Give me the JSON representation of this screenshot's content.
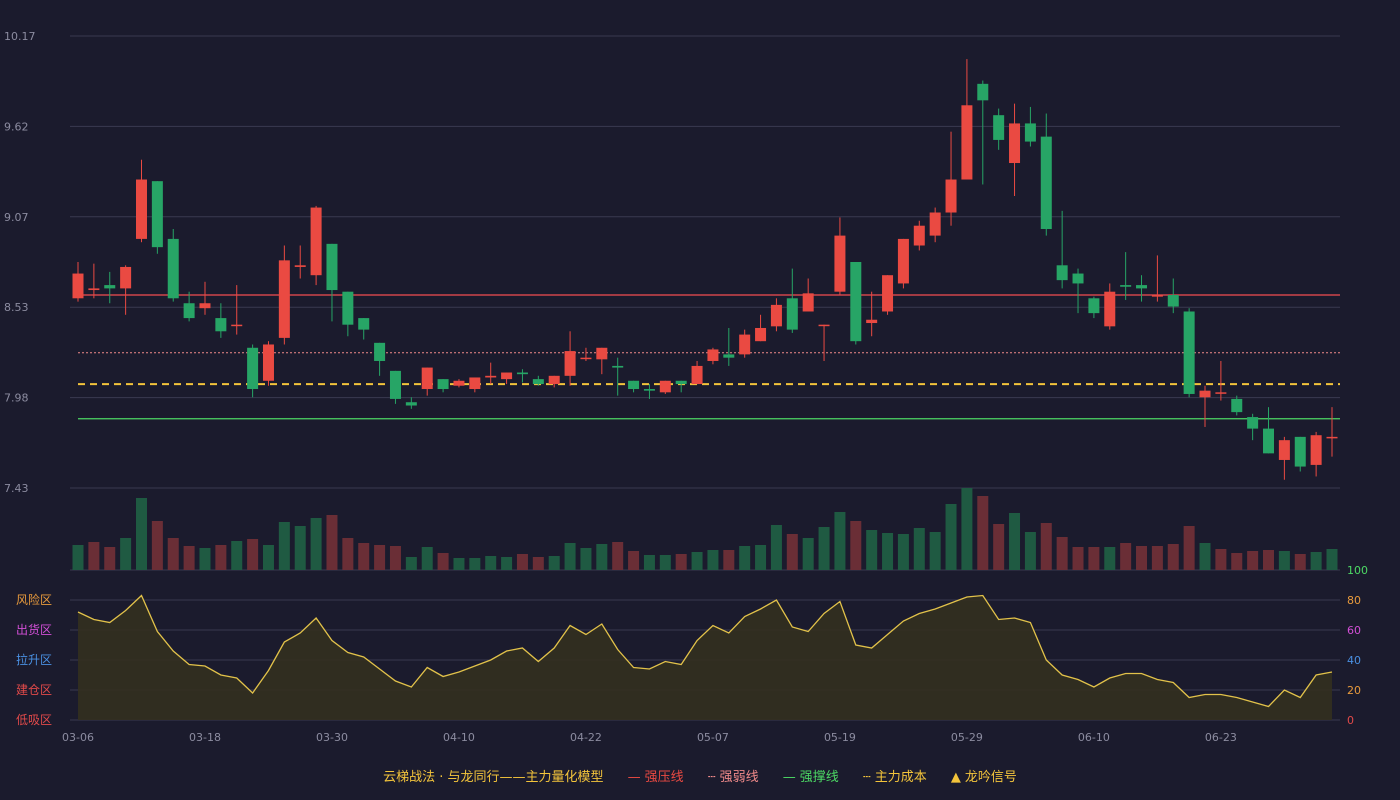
{
  "colors": {
    "background": "#1b1b2d",
    "up": "#ea4a42",
    "down": "#27a566",
    "grid": "#3a3a50",
    "resistance": "#d0454b",
    "weak": "#f08a8a",
    "support": "#4cd964",
    "cost": "#f3c43b",
    "oscillator": "#e2c24a",
    "axis_text": "#8c8ca0"
  },
  "legend": {
    "title": "云梯战法 · 与龙同行——主力量化模型",
    "items": [
      {
        "symbol": "—",
        "label": "强压线",
        "color": "#ea4a42"
      },
      {
        "symbol": "┄",
        "label": "强弱线",
        "color": "#f08a8a"
      },
      {
        "symbol": "—",
        "label": "强撑线",
        "color": "#4cd964"
      },
      {
        "symbol": "┄",
        "label": "主力成本",
        "color": "#f3c43b"
      },
      {
        "symbol": "▲",
        "label": "龙吟信号",
        "color": "#f3c43b"
      }
    ]
  },
  "chart_data": {
    "type": "candlestick",
    "price_ylim": [
      7.43,
      10.17
    ],
    "price_ticks": [
      "10.17",
      "9.62",
      "9.07",
      "8.53",
      "7.98",
      "7.43"
    ],
    "date_ticks": [
      {
        "index": 0,
        "label": "03-06"
      },
      {
        "index": 8,
        "label": "03-18"
      },
      {
        "index": 16,
        "label": "03-30"
      },
      {
        "index": 24,
        "label": "04-10"
      },
      {
        "index": 32,
        "label": "04-22"
      },
      {
        "index": 40,
        "label": "05-07"
      },
      {
        "index": 48,
        "label": "05-19"
      },
      {
        "index": 56,
        "label": "05-29"
      },
      {
        "index": 64,
        "label": "06-10"
      },
      {
        "index": 72,
        "label": "06-23"
      }
    ],
    "levels": {
      "strong_resistance": 8.6,
      "weak_line": 8.25,
      "main_cost": 8.06,
      "strong_support": 7.85
    },
    "candles": [
      [
        8.58,
        8.73,
        8.56,
        8.8
      ],
      [
        8.63,
        8.64,
        8.58,
        8.79
      ],
      [
        8.66,
        8.64,
        8.55,
        8.74
      ],
      [
        8.64,
        8.77,
        8.48,
        8.78
      ],
      [
        8.94,
        9.3,
        8.92,
        9.42
      ],
      [
        9.29,
        8.89,
        8.85,
        9.29
      ],
      [
        8.94,
        8.58,
        8.56,
        9.0
      ],
      [
        8.55,
        8.46,
        8.44,
        8.62
      ],
      [
        8.52,
        8.55,
        8.48,
        8.68
      ],
      [
        8.46,
        8.38,
        8.34,
        8.55
      ],
      [
        8.42,
        8.42,
        8.36,
        8.66
      ],
      [
        8.28,
        8.03,
        7.98,
        8.3
      ],
      [
        8.08,
        8.3,
        8.05,
        8.32
      ],
      [
        8.34,
        8.81,
        8.3,
        8.9
      ],
      [
        8.77,
        8.78,
        8.7,
        8.9
      ],
      [
        8.72,
        9.13,
        8.66,
        9.14
      ],
      [
        8.91,
        8.63,
        8.44,
        8.91
      ],
      [
        8.62,
        8.42,
        8.35,
        8.62
      ],
      [
        8.46,
        8.39,
        8.33,
        8.46
      ],
      [
        8.31,
        8.2,
        8.11,
        8.31
      ],
      [
        8.14,
        7.97,
        7.94,
        8.14
      ],
      [
        7.95,
        7.93,
        7.91,
        7.98
      ],
      [
        8.03,
        8.16,
        7.99,
        8.16
      ],
      [
        8.09,
        8.03,
        8.01,
        8.09
      ],
      [
        8.05,
        8.08,
        8.04,
        8.09
      ],
      [
        8.03,
        8.1,
        8.01,
        8.1
      ],
      [
        8.1,
        8.11,
        8.06,
        8.19
      ],
      [
        8.09,
        8.13,
        8.06,
        8.13
      ],
      [
        8.13,
        8.12,
        8.07,
        8.15
      ],
      [
        8.09,
        8.06,
        8.05,
        8.11
      ],
      [
        8.06,
        8.11,
        8.04,
        8.11
      ],
      [
        8.11,
        8.26,
        8.05,
        8.38
      ],
      [
        8.22,
        8.22,
        8.2,
        8.28
      ],
      [
        8.21,
        8.28,
        8.12,
        8.28
      ],
      [
        8.17,
        8.16,
        7.99,
        8.22
      ],
      [
        8.08,
        8.03,
        8.01,
        8.08
      ],
      [
        8.03,
        8.02,
        7.97,
        8.06
      ],
      [
        8.01,
        8.08,
        8.0,
        8.08
      ],
      [
        8.08,
        8.06,
        8.01,
        8.08
      ],
      [
        8.06,
        8.17,
        8.06,
        8.2
      ],
      [
        8.2,
        8.27,
        8.18,
        8.28
      ],
      [
        8.24,
        8.22,
        8.17,
        8.4
      ],
      [
        8.24,
        8.36,
        8.22,
        8.39
      ],
      [
        8.32,
        8.4,
        8.32,
        8.48
      ],
      [
        8.41,
        8.54,
        8.38,
        8.58
      ],
      [
        8.58,
        8.39,
        8.37,
        8.76
      ],
      [
        8.5,
        8.61,
        8.5,
        8.7
      ],
      [
        8.42,
        8.42,
        8.2,
        8.42
      ],
      [
        8.62,
        8.96,
        8.6,
        9.07
      ],
      [
        8.8,
        8.32,
        8.3,
        8.8
      ],
      [
        8.43,
        8.45,
        8.35,
        8.62
      ],
      [
        8.5,
        8.72,
        8.48,
        8.72
      ],
      [
        8.67,
        8.94,
        8.64,
        8.94
      ],
      [
        8.9,
        9.02,
        8.87,
        9.05
      ],
      [
        8.96,
        9.1,
        8.92,
        9.13
      ],
      [
        9.1,
        9.3,
        9.02,
        9.59
      ],
      [
        9.3,
        9.75,
        9.3,
        10.03
      ],
      [
        9.88,
        9.78,
        9.27,
        9.9
      ],
      [
        9.69,
        9.54,
        9.48,
        9.73
      ],
      [
        9.4,
        9.64,
        9.2,
        9.76
      ],
      [
        9.64,
        9.53,
        9.5,
        9.74
      ],
      [
        9.56,
        9.0,
        8.96,
        9.7
      ],
      [
        8.78,
        8.69,
        8.64,
        9.11
      ],
      [
        8.73,
        8.67,
        8.49,
        8.76
      ],
      [
        8.58,
        8.49,
        8.46,
        8.59
      ],
      [
        8.41,
        8.62,
        8.39,
        8.67
      ],
      [
        8.66,
        8.65,
        8.57,
        8.86
      ],
      [
        8.66,
        8.64,
        8.56,
        8.72
      ],
      [
        8.59,
        8.6,
        8.56,
        8.84
      ],
      [
        8.6,
        8.53,
        8.49,
        8.7
      ],
      [
        8.5,
        8.0,
        7.98,
        8.52
      ],
      [
        7.98,
        8.02,
        7.8,
        8.05
      ],
      [
        8.01,
        8.01,
        7.96,
        8.2
      ],
      [
        7.97,
        7.89,
        7.87,
        7.99
      ],
      [
        7.86,
        7.79,
        7.72,
        7.88
      ],
      [
        7.79,
        7.64,
        7.64,
        7.92
      ],
      [
        7.6,
        7.72,
        7.48,
        7.74
      ],
      [
        7.74,
        7.56,
        7.53,
        7.74
      ],
      [
        7.57,
        7.75,
        7.5,
        7.77
      ],
      [
        7.74,
        7.74,
        7.62,
        7.92
      ]
    ],
    "volume": [
      [
        25,
        1
      ],
      [
        28,
        0
      ],
      [
        23,
        0
      ],
      [
        32,
        1
      ],
      [
        72,
        1
      ],
      [
        49,
        0
      ],
      [
        32,
        0
      ],
      [
        24,
        0
      ],
      [
        22,
        1
      ],
      [
        25,
        0
      ],
      [
        29,
        1
      ],
      [
        31,
        0
      ],
      [
        25,
        1
      ],
      [
        48,
        1
      ],
      [
        44,
        1
      ],
      [
        52,
        1
      ],
      [
        55,
        0
      ],
      [
        32,
        0
      ],
      [
        27,
        0
      ],
      [
        25,
        0
      ],
      [
        24,
        0
      ],
      [
        13,
        1
      ],
      [
        23,
        1
      ],
      [
        17,
        0
      ],
      [
        12,
        1
      ],
      [
        12,
        1
      ],
      [
        14,
        1
      ],
      [
        13,
        1
      ],
      [
        16,
        0
      ],
      [
        13,
        0
      ],
      [
        14,
        1
      ],
      [
        27,
        1
      ],
      [
        22,
        1
      ],
      [
        26,
        1
      ],
      [
        28,
        0
      ],
      [
        19,
        0
      ],
      [
        15,
        1
      ],
      [
        15,
        1
      ],
      [
        16,
        0
      ],
      [
        18,
        1
      ],
      [
        20,
        1
      ],
      [
        20,
        0
      ],
      [
        24,
        1
      ],
      [
        25,
        1
      ],
      [
        45,
        1
      ],
      [
        36,
        0
      ],
      [
        32,
        1
      ],
      [
        43,
        1
      ],
      [
        58,
        1
      ],
      [
        49,
        0
      ],
      [
        40,
        1
      ],
      [
        37,
        1
      ],
      [
        36,
        1
      ],
      [
        42,
        1
      ],
      [
        38,
        1
      ],
      [
        66,
        1
      ],
      [
        82,
        1
      ],
      [
        74,
        0
      ],
      [
        46,
        0
      ],
      [
        57,
        1
      ],
      [
        38,
        1
      ],
      [
        47,
        0
      ],
      [
        33,
        0
      ],
      [
        23,
        0
      ],
      [
        23,
        0
      ],
      [
        23,
        1
      ],
      [
        27,
        0
      ],
      [
        24,
        0
      ],
      [
        24,
        0
      ],
      [
        26,
        0
      ],
      [
        44,
        0
      ],
      [
        27,
        1
      ],
      [
        21,
        0
      ],
      [
        17,
        0
      ],
      [
        19,
        0
      ],
      [
        20,
        0
      ],
      [
        19,
        1
      ],
      [
        16,
        0
      ],
      [
        18,
        1
      ],
      [
        21,
        1
      ]
    ],
    "oscillator": [
      72,
      67,
      65,
      73,
      83,
      59,
      46,
      37,
      36,
      30,
      28,
      18,
      33,
      52,
      58,
      68,
      53,
      45,
      42,
      34,
      26,
      22,
      35,
      29,
      32,
      36,
      40,
      46,
      48,
      39,
      48,
      63,
      57,
      64,
      47,
      35,
      34,
      39,
      37,
      53,
      63,
      58,
      69,
      74,
      80,
      62,
      59,
      71,
      79,
      50,
      48,
      57,
      66,
      71,
      74,
      78,
      82,
      83,
      67,
      68,
      65,
      40,
      30,
      27,
      22,
      28,
      31,
      31,
      27,
      25,
      15,
      17,
      17,
      15,
      12,
      9,
      20,
      15,
      30,
      32
    ],
    "oscillator_ylim": [
      0,
      100
    ],
    "oscillator_ticks": [
      "100",
      "80",
      "60",
      "40",
      "20",
      "0"
    ],
    "zones": [
      {
        "label": "风险区",
        "value": 80,
        "color": "#e89a3c"
      },
      {
        "label": "出货区",
        "value": 60,
        "color": "#d24fd6"
      },
      {
        "label": "拉升区",
        "value": 40,
        "color": "#4a90e2"
      },
      {
        "label": "建仓区",
        "value": 20,
        "color": "#e24a4a"
      },
      {
        "label": "低吸区",
        "value": 0,
        "color": "#e24a4a"
      }
    ]
  }
}
